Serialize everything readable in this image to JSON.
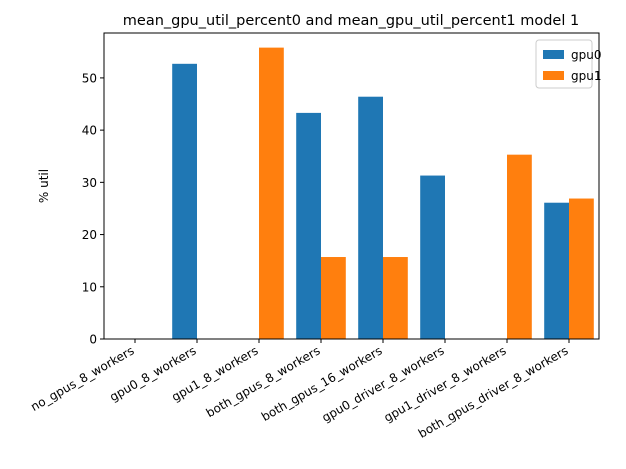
{
  "chart_data": {
    "type": "bar",
    "title": "mean_gpu_util_percent0 and mean_gpu_util_percent1 model 1",
    "xlabel": "",
    "ylabel": "% util",
    "categories": [
      "no_gpus_8_workers",
      "gpu0_8_workers",
      "gpu1_8_workers",
      "both_gpus_8_workers",
      "both_gpus_16_workers",
      "gpu0_driver_8_workers",
      "gpu1_driver_8_workers",
      "both_gpus_driver_8_workers"
    ],
    "series": [
      {
        "name": "gpu0",
        "color": "#1f77b4",
        "values": [
          0,
          52.7,
          0,
          43.3,
          46.4,
          31.3,
          0,
          26.1
        ]
      },
      {
        "name": "gpu1",
        "color": "#ff7f0e",
        "values": [
          0,
          0,
          55.8,
          15.7,
          15.7,
          0,
          35.3,
          26.9
        ]
      }
    ],
    "ylim": [
      0,
      58.6
    ],
    "yticks": [
      0,
      10,
      20,
      30,
      40,
      50
    ],
    "grid": false,
    "legend": "top-right"
  }
}
